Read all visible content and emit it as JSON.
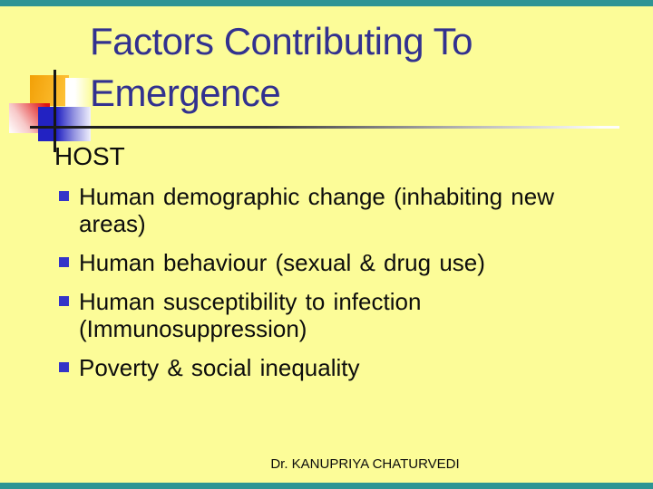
{
  "slide": {
    "title_lines": [
      "Factors Contributing To",
      "Emergence"
    ],
    "section_heading": "HOST",
    "bullets": [
      {
        "lines": [
          "Human demographic change (inhabiting new",
          "areas)"
        ]
      },
      {
        "lines": [
          "Human behaviour (sexual & drug use)"
        ]
      },
      {
        "lines": [
          "Human susceptibility to infection",
          "(Immunosuppression)"
        ]
      },
      {
        "lines": [
          "Poverty & social inequality"
        ]
      }
    ],
    "footer": "Dr. KANUPRIYA CHATURVEDI",
    "colors": {
      "background": "#FCFC98",
      "edge_bar": "#2E9494",
      "title_text": "#32318F",
      "body_text": "#0D0D0D",
      "bullet_marker": "#3434C8",
      "deco_orange": "#F5A70B",
      "deco_red": "#E01212",
      "deco_blue": "#2222C2"
    }
  }
}
